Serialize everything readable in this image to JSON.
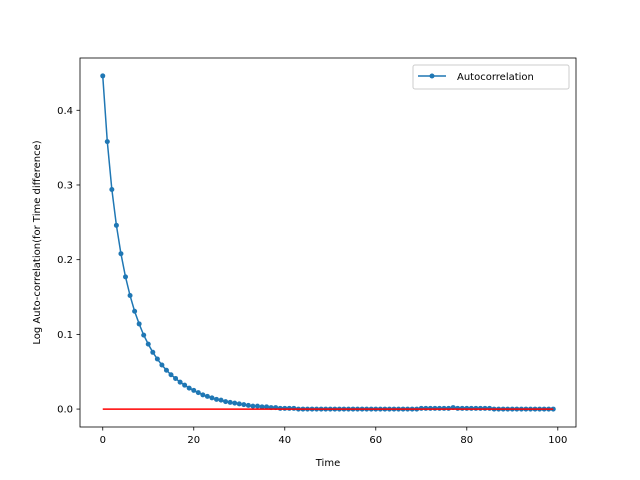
{
  "chart_data": {
    "type": "line",
    "title": "",
    "xlabel": "Time",
    "ylabel": "Log Auto-correlation(for Time difference)",
    "xlim": [
      -5,
      104
    ],
    "ylim": [
      -0.024,
      0.47
    ],
    "xticks": [
      0,
      20,
      40,
      60,
      80,
      100
    ],
    "yticks": [
      0.0,
      0.1,
      0.2,
      0.3,
      0.4
    ],
    "xtick_labels": [
      "0",
      "20",
      "40",
      "60",
      "80",
      "100"
    ],
    "ytick_labels": [
      "0.0",
      "0.1",
      "0.2",
      "0.3",
      "0.4"
    ],
    "grid": false,
    "legend_position": "top-right",
    "series": [
      {
        "name": "Autocorrelation",
        "color": "#1f77b4",
        "marker": "circle",
        "x": [
          0,
          1,
          2,
          3,
          4,
          5,
          6,
          7,
          8,
          9,
          10,
          11,
          12,
          13,
          14,
          15,
          16,
          17,
          18,
          19,
          20,
          21,
          22,
          23,
          24,
          25,
          26,
          27,
          28,
          29,
          30,
          31,
          32,
          33,
          34,
          35,
          36,
          37,
          38,
          39,
          40,
          41,
          42,
          43,
          44,
          45,
          46,
          47,
          48,
          49,
          50,
          51,
          52,
          53,
          54,
          55,
          56,
          57,
          58,
          59,
          60,
          61,
          62,
          63,
          64,
          65,
          66,
          67,
          68,
          69,
          70,
          71,
          72,
          73,
          74,
          75,
          76,
          77,
          78,
          79,
          80,
          81,
          82,
          83,
          84,
          85,
          86,
          87,
          88,
          89,
          90,
          91,
          92,
          93,
          94,
          95,
          96,
          97,
          98,
          99
        ],
        "y": [
          0.446,
          0.358,
          0.294,
          0.246,
          0.208,
          0.177,
          0.152,
          0.131,
          0.114,
          0.099,
          0.087,
          0.076,
          0.067,
          0.059,
          0.052,
          0.046,
          0.041,
          0.036,
          0.032,
          0.028,
          0.025,
          0.022,
          0.019,
          0.017,
          0.015,
          0.013,
          0.012,
          0.01,
          0.009,
          0.008,
          0.007,
          0.006,
          0.005,
          0.004,
          0.004,
          0.003,
          0.003,
          0.002,
          0.002,
          0.001,
          0.001,
          0.001,
          0.001,
          0.0,
          0.0,
          0.0,
          0.0,
          0.0,
          0.0,
          0.0,
          0.0,
          0.0,
          0.0,
          0.0,
          0.0,
          0.0,
          0.0,
          0.0,
          0.0,
          0.0,
          0.0,
          0.0,
          0.0,
          0.0,
          0.0,
          0.0,
          0.0,
          0.0,
          0.0,
          0.0,
          0.001,
          0.001,
          0.001,
          0.001,
          0.001,
          0.001,
          0.001,
          0.002,
          0.001,
          0.001,
          0.001,
          0.001,
          0.001,
          0.001,
          0.001,
          0.001,
          0.0,
          0.0,
          0.0,
          0.0,
          0.0,
          0.0,
          0.0,
          0.0,
          0.0,
          0.0,
          0.0,
          0.0,
          0.0,
          0.0
        ]
      },
      {
        "color": "#ff0000",
        "marker": "none",
        "x": [
          0,
          99
        ],
        "y": [
          0.0,
          0.0
        ]
      }
    ]
  }
}
